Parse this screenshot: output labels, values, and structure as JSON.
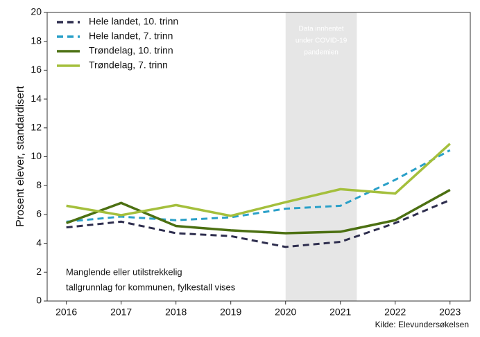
{
  "chart_data": {
    "type": "line",
    "y_label": "Prosent elever, standardisert",
    "x": [
      2016,
      2017,
      2018,
      2019,
      2020,
      2021,
      2022,
      2023
    ],
    "series": [
      {
        "name": "Hele landet, 10. trinn",
        "color": "#2e2e4e",
        "dash": true,
        "values": [
          5.1,
          5.5,
          4.7,
          4.5,
          3.75,
          4.1,
          5.4,
          7.0
        ]
      },
      {
        "name": "Hele landet, 7. trinn",
        "color": "#2aa0c8",
        "dash": true,
        "values": [
          5.5,
          5.85,
          5.6,
          5.8,
          6.4,
          6.6,
          8.4,
          10.45
        ]
      },
      {
        "name": "Trøndelag, 10. trinn",
        "color": "#4c7012",
        "dash": false,
        "values": [
          5.4,
          6.8,
          5.2,
          4.9,
          4.7,
          4.8,
          5.6,
          7.7
        ]
      },
      {
        "name": "Trøndelag, 7. trinn",
        "color": "#a4bf3c",
        "dash": false,
        "values": [
          6.6,
          5.95,
          6.65,
          5.9,
          6.85,
          7.75,
          7.45,
          10.9
        ]
      }
    ],
    "shaded_span": [
      2020,
      2021.3
    ],
    "shaded_note": [
      "Data innhentet",
      "under COVID-19",
      "pandemien"
    ],
    "note": [
      "Manglende eller utilstrekkelig",
      "tallgrunnlag for kommunen, fylkestall vises"
    ],
    "source": "Kilde: Elevundersøkelsen",
    "xlim": [
      2015.65,
      2023.37
    ],
    "ylim": [
      0,
      20
    ],
    "xticks": [
      2016,
      2017,
      2018,
      2019,
      2020,
      2021,
      2022,
      2023
    ],
    "yticks": [
      0,
      2,
      4,
      6,
      8,
      10,
      12,
      14,
      16,
      18,
      20
    ],
    "legend": "upper left"
  }
}
